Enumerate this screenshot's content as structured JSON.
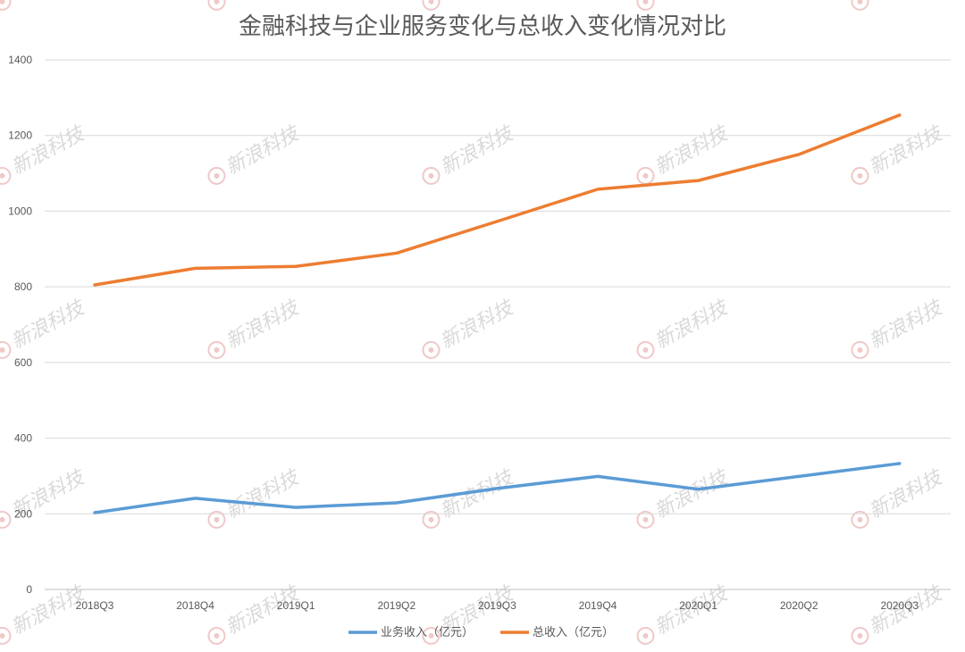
{
  "chart_data": {
    "type": "line",
    "title": "金融科技与企业服务变化与总收入变化情况对比",
    "xlabel": "",
    "ylabel": "",
    "categories": [
      "2018Q3",
      "2018Q4",
      "2019Q1",
      "2019Q2",
      "2019Q3",
      "2019Q4",
      "2020Q1",
      "2020Q2",
      "2020Q3"
    ],
    "ylim": [
      0,
      1400
    ],
    "yticks": [
      0,
      200,
      400,
      600,
      800,
      1000,
      1200,
      1400
    ],
    "grid": true,
    "legend_position": "bottom",
    "series": [
      {
        "name": "业务收入（亿元）",
        "color": "#5b9bd5",
        "values": [
          203,
          241,
          217,
          229,
          267,
          299,
          265,
          299,
          333
        ]
      },
      {
        "name": "总收入（亿元）",
        "color": "#ed7d31",
        "values": [
          805,
          849,
          854,
          889,
          973,
          1058,
          1081,
          1150,
          1254
        ]
      }
    ]
  },
  "watermark": {
    "text": "新浪科技",
    "logo": "sina"
  }
}
